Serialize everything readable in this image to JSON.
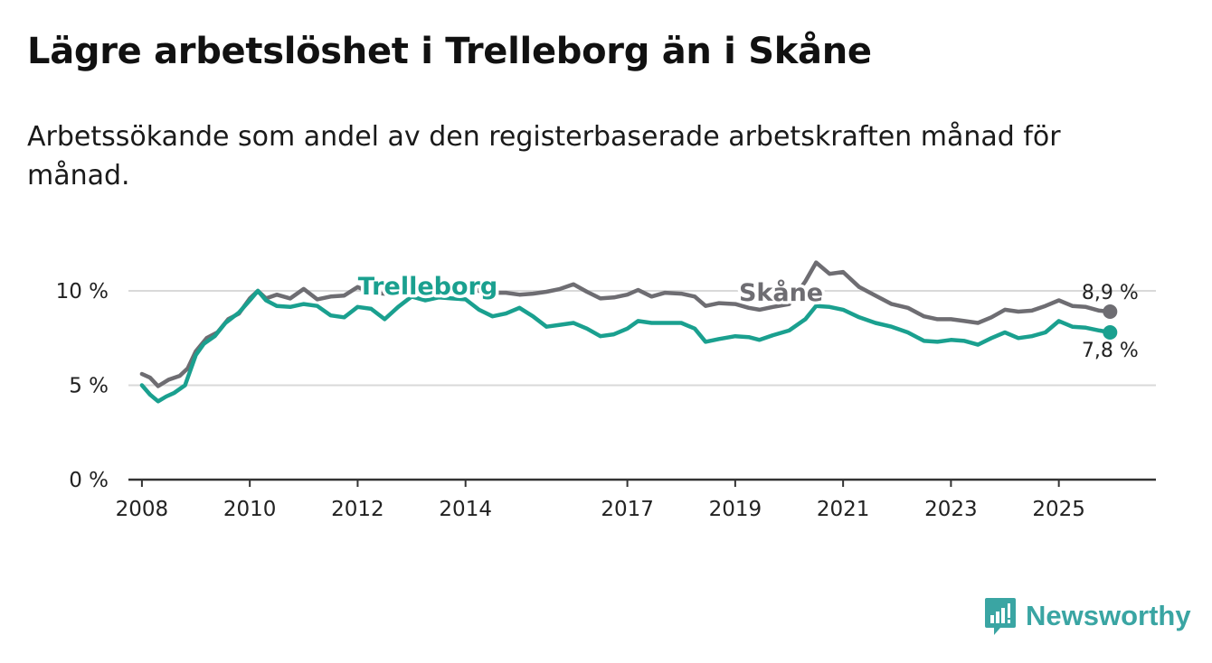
{
  "header": {
    "title": "Lägre arbetslöshet i Trelleborg än i Skåne",
    "subtitle": "Arbetssökande som andel av den registerbaserade arbetskraften månad för månad."
  },
  "brand": {
    "name": "Newsworthy",
    "icon": "bar-chart-logo-icon",
    "color": "#3aa5a3"
  },
  "chart_data": {
    "type": "line",
    "title": "Lägre arbetslöshet i Trelleborg än i Skåne",
    "xlabel": "",
    "ylabel": "",
    "xlim": [
      2007.75,
      2026.8
    ],
    "ylim": [
      0,
      10
    ],
    "x_ticks": [
      2008,
      2010,
      2012,
      2014,
      2017,
      2019,
      2021,
      2023,
      2025
    ],
    "y_ticks": [
      {
        "value": 0,
        "label": "0 %"
      },
      {
        "value": 5,
        "label": "5 %"
      },
      {
        "value": 10,
        "label": "10 %"
      }
    ],
    "grid": true,
    "series": [
      {
        "name": "Skåne",
        "color": "#6e6d72",
        "end_label": "8,9 %",
        "points": [
          [
            2008.0,
            5.6
          ],
          [
            2008.15,
            5.4
          ],
          [
            2008.3,
            4.95
          ],
          [
            2008.5,
            5.3
          ],
          [
            2008.7,
            5.5
          ],
          [
            2008.85,
            5.9
          ],
          [
            2009.0,
            6.8
          ],
          [
            2009.2,
            7.5
          ],
          [
            2009.4,
            7.8
          ],
          [
            2009.6,
            8.5
          ],
          [
            2009.8,
            8.8
          ],
          [
            2010.0,
            9.6
          ],
          [
            2010.15,
            10.0
          ],
          [
            2010.3,
            9.6
          ],
          [
            2010.5,
            9.8
          ],
          [
            2010.75,
            9.6
          ],
          [
            2011.0,
            10.1
          ],
          [
            2011.25,
            9.55
          ],
          [
            2011.5,
            9.7
          ],
          [
            2011.75,
            9.75
          ],
          [
            2012.0,
            10.2
          ],
          [
            2012.25,
            9.9
          ],
          [
            2012.5,
            9.85
          ],
          [
            2012.75,
            10.1
          ],
          [
            2013.0,
            9.95
          ],
          [
            2013.25,
            9.9
          ],
          [
            2013.5,
            10.2
          ],
          [
            2013.75,
            10.05
          ],
          [
            2014.0,
            10.3
          ],
          [
            2014.25,
            10.0
          ],
          [
            2014.5,
            9.9
          ],
          [
            2014.75,
            9.9
          ],
          [
            2015.0,
            9.8
          ],
          [
            2015.25,
            9.85
          ],
          [
            2015.5,
            9.95
          ],
          [
            2015.75,
            10.1
          ],
          [
            2016.0,
            10.35
          ],
          [
            2016.25,
            9.95
          ],
          [
            2016.5,
            9.6
          ],
          [
            2016.75,
            9.65
          ],
          [
            2017.0,
            9.8
          ],
          [
            2017.2,
            10.05
          ],
          [
            2017.45,
            9.7
          ],
          [
            2017.7,
            9.9
          ],
          [
            2018.0,
            9.85
          ],
          [
            2018.25,
            9.7
          ],
          [
            2018.45,
            9.2
          ],
          [
            2018.7,
            9.35
          ],
          [
            2019.0,
            9.3
          ],
          [
            2019.25,
            9.1
          ],
          [
            2019.45,
            9.0
          ],
          [
            2019.7,
            9.15
          ],
          [
            2020.0,
            9.3
          ],
          [
            2020.3,
            10.5
          ],
          [
            2020.5,
            11.5
          ],
          [
            2020.75,
            10.9
          ],
          [
            2021.0,
            11.0
          ],
          [
            2021.3,
            10.2
          ],
          [
            2021.6,
            9.75
          ],
          [
            2021.9,
            9.3
          ],
          [
            2022.2,
            9.1
          ],
          [
            2022.5,
            8.65
          ],
          [
            2022.75,
            8.5
          ],
          [
            2023.0,
            8.5
          ],
          [
            2023.25,
            8.4
          ],
          [
            2023.5,
            8.3
          ],
          [
            2023.75,
            8.6
          ],
          [
            2024.0,
            9.0
          ],
          [
            2024.25,
            8.9
          ],
          [
            2024.5,
            8.95
          ],
          [
            2024.75,
            9.2
          ],
          [
            2025.0,
            9.5
          ],
          [
            2025.25,
            9.2
          ],
          [
            2025.5,
            9.15
          ],
          [
            2025.75,
            8.95
          ],
          [
            2025.95,
            8.9
          ]
        ]
      },
      {
        "name": "Trelleborg",
        "color": "#1aa08f",
        "end_label": "7,8 %",
        "points": [
          [
            2008.0,
            5.0
          ],
          [
            2008.15,
            4.5
          ],
          [
            2008.3,
            4.15
          ],
          [
            2008.45,
            4.4
          ],
          [
            2008.6,
            4.6
          ],
          [
            2008.8,
            5.0
          ],
          [
            2009.0,
            6.6
          ],
          [
            2009.15,
            7.2
          ],
          [
            2009.35,
            7.6
          ],
          [
            2009.55,
            8.3
          ],
          [
            2009.8,
            8.85
          ],
          [
            2010.0,
            9.5
          ],
          [
            2010.15,
            10.0
          ],
          [
            2010.3,
            9.5
          ],
          [
            2010.5,
            9.2
          ],
          [
            2010.75,
            9.15
          ],
          [
            2011.0,
            9.3
          ],
          [
            2011.25,
            9.2
          ],
          [
            2011.5,
            8.7
          ],
          [
            2011.75,
            8.6
          ],
          [
            2012.0,
            9.15
          ],
          [
            2012.25,
            9.05
          ],
          [
            2012.5,
            8.5
          ],
          [
            2012.75,
            9.15
          ],
          [
            2013.0,
            9.7
          ],
          [
            2013.25,
            9.5
          ],
          [
            2013.5,
            9.65
          ],
          [
            2013.75,
            9.6
          ],
          [
            2014.0,
            9.55
          ],
          [
            2014.25,
            9.0
          ],
          [
            2014.5,
            8.65
          ],
          [
            2014.75,
            8.8
          ],
          [
            2015.0,
            9.1
          ],
          [
            2015.25,
            8.65
          ],
          [
            2015.5,
            8.1
          ],
          [
            2015.75,
            8.2
          ],
          [
            2016.0,
            8.3
          ],
          [
            2016.25,
            8.0
          ],
          [
            2016.5,
            7.6
          ],
          [
            2016.75,
            7.7
          ],
          [
            2017.0,
            8.0
          ],
          [
            2017.2,
            8.4
          ],
          [
            2017.45,
            8.3
          ],
          [
            2017.7,
            8.3
          ],
          [
            2018.0,
            8.3
          ],
          [
            2018.25,
            8.0
          ],
          [
            2018.45,
            7.3
          ],
          [
            2018.7,
            7.45
          ],
          [
            2019.0,
            7.6
          ],
          [
            2019.25,
            7.55
          ],
          [
            2019.45,
            7.4
          ],
          [
            2019.7,
            7.65
          ],
          [
            2020.0,
            7.9
          ],
          [
            2020.3,
            8.5
          ],
          [
            2020.5,
            9.2
          ],
          [
            2020.75,
            9.15
          ],
          [
            2021.0,
            9.0
          ],
          [
            2021.3,
            8.6
          ],
          [
            2021.6,
            8.3
          ],
          [
            2021.9,
            8.1
          ],
          [
            2022.2,
            7.8
          ],
          [
            2022.5,
            7.35
          ],
          [
            2022.75,
            7.3
          ],
          [
            2023.0,
            7.4
          ],
          [
            2023.25,
            7.35
          ],
          [
            2023.5,
            7.15
          ],
          [
            2023.75,
            7.5
          ],
          [
            2024.0,
            7.8
          ],
          [
            2024.25,
            7.5
          ],
          [
            2024.5,
            7.6
          ],
          [
            2024.75,
            7.8
          ],
          [
            2025.0,
            8.4
          ],
          [
            2025.25,
            8.1
          ],
          [
            2025.5,
            8.05
          ],
          [
            2025.75,
            7.9
          ],
          [
            2025.95,
            7.8
          ]
        ]
      }
    ],
    "annotations": [
      {
        "text": "Trelleborg",
        "series": "Trelleborg",
        "x": 2013.3,
        "y": 10.25
      },
      {
        "text": "Skåne",
        "series": "Skåne",
        "x": 2019.85,
        "y": 9.9
      }
    ]
  }
}
